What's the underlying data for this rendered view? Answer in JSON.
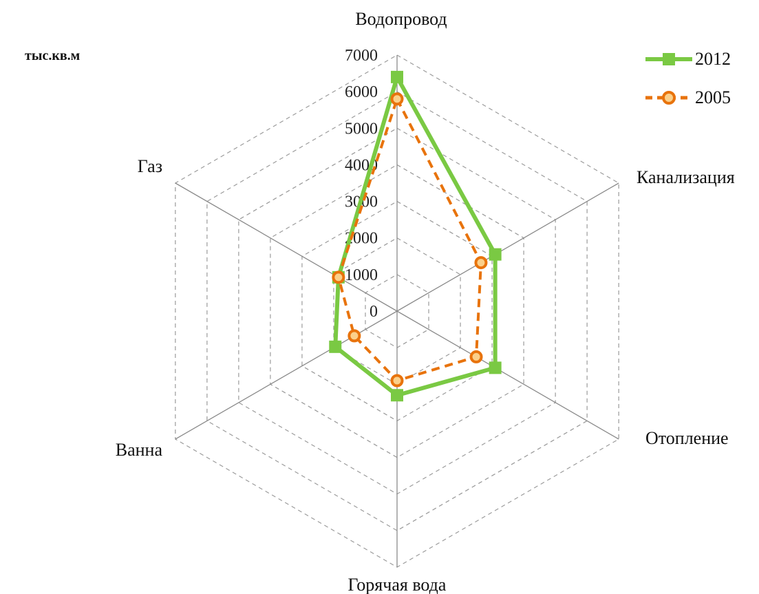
{
  "chart_data": {
    "type": "radar",
    "unit_label": "тыс.кв.м",
    "categories": [
      "Водопровод",
      "Канализация",
      "Отопление",
      "Горячая вода",
      "Ванна",
      "Газ"
    ],
    "ticks": [
      "0",
      "1000",
      "2000",
      "3000",
      "4000",
      "5000",
      "6000",
      "7000"
    ],
    "r_range": [
      0,
      7000
    ],
    "grid": true,
    "legend_position": "top-right",
    "series": [
      {
        "name": "2012",
        "color": "#7ac943",
        "dash": false,
        "marker": "square",
        "values": [
          6400,
          3100,
          3100,
          2300,
          1950,
          1850
        ]
      },
      {
        "name": "2005",
        "color": "#e8730c",
        "dash": true,
        "marker": "circle",
        "values": [
          5800,
          2650,
          2500,
          1900,
          1350,
          1850
        ]
      }
    ]
  }
}
